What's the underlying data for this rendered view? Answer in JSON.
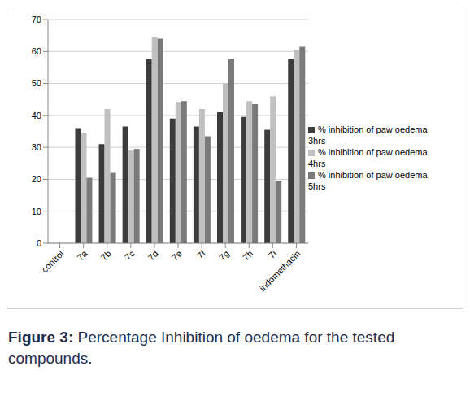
{
  "chart_data": {
    "type": "bar",
    "caption": "Figure 3: Percentage Inhibition of oedema for the tested compounds.",
    "categories": [
      "control",
      "7a",
      "7b",
      "7c",
      "7d",
      "7e",
      "7f",
      "7g",
      "7h",
      "7i",
      "indomethacin"
    ],
    "series": [
      {
        "name": "% inhibition of paw oedema 3hrs",
        "color": "#3c3c3c",
        "values": [
          0,
          36,
          31,
          36.5,
          57.5,
          39,
          36.5,
          41,
          39.5,
          35.5,
          57.5
        ]
      },
      {
        "name": "% inhibition of paw oedema 4hrs",
        "color": "#c0c0c0",
        "values": [
          0,
          34.5,
          42,
          29,
          64.5,
          44,
          42,
          50,
          44.5,
          46,
          60.5
        ]
      },
      {
        "name": "% inhibition of paw oedema 5hrs",
        "color": "#7a7a7a",
        "values": [
          0,
          20.5,
          22,
          29.5,
          64,
          44.5,
          33.5,
          57.5,
          43.5,
          19.5,
          61.5
        ]
      }
    ],
    "ylim": [
      0,
      70
    ],
    "yticks": [
      0,
      10,
      20,
      30,
      40,
      50,
      60,
      70
    ],
    "grid": true,
    "legend": "right"
  }
}
